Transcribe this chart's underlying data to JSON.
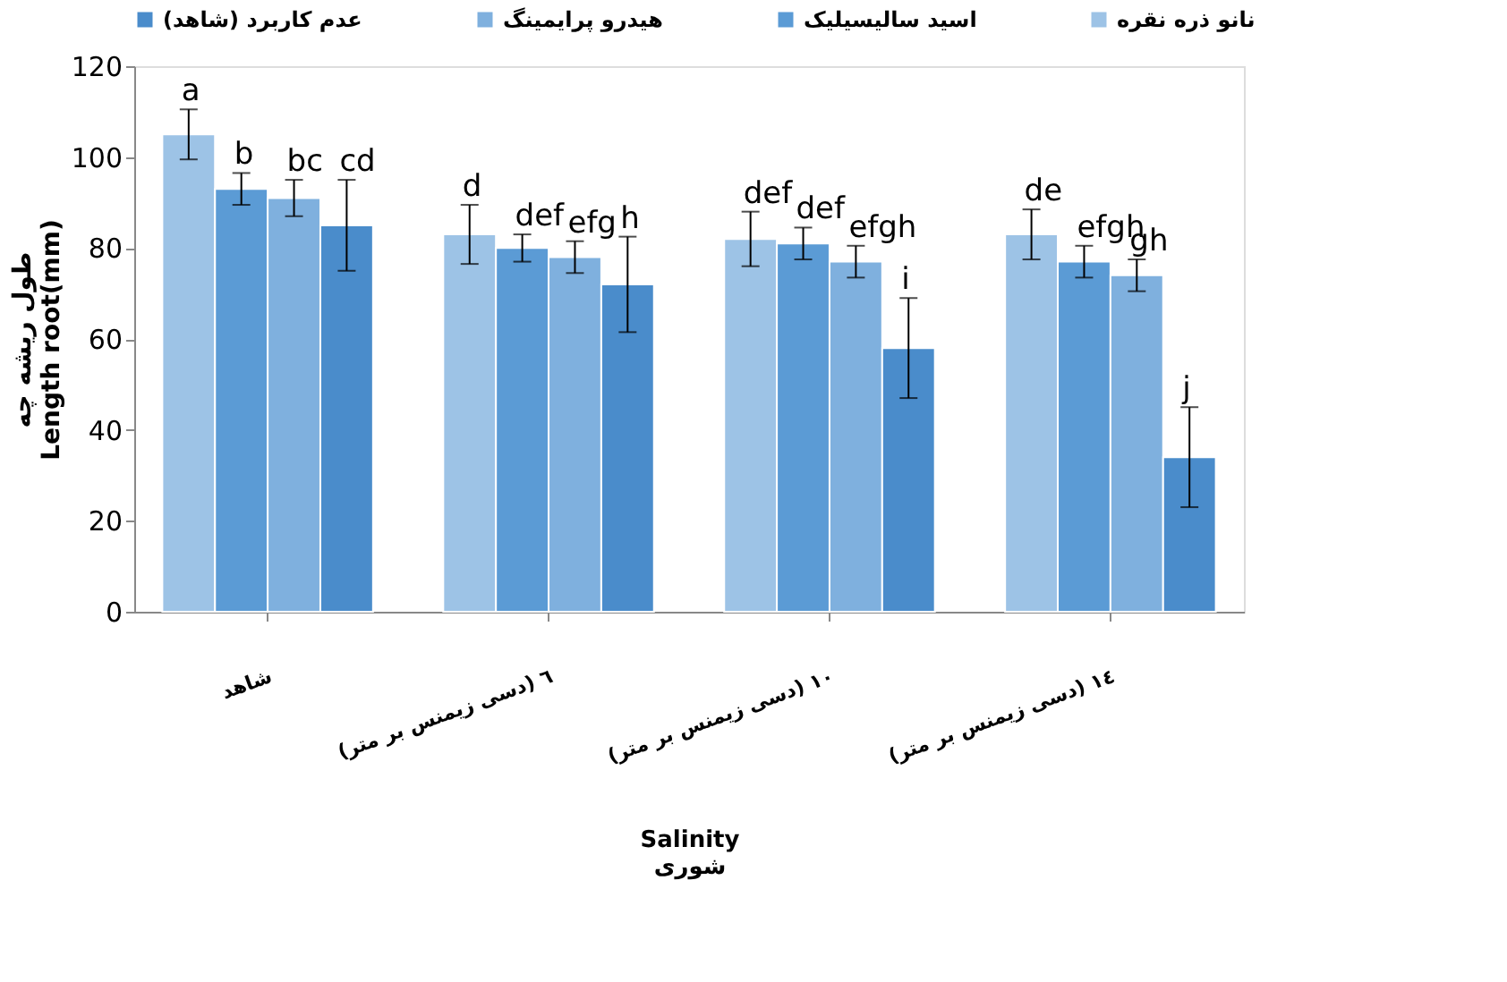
{
  "chart_data": {
    "type": "bar",
    "xlabel": "Salinity\nشوری",
    "ylabel": "طول ریشه چه\nLength root(mm)",
    "categories": [
      "شاهد",
      "٦ (دسی زیمنس بر متر)",
      "١٠ (دسی زیمنس بر متر)",
      "١٤ (دسی زیمنس بر متر)"
    ],
    "series": [
      {
        "name": "نانو ذره نقره",
        "color": "#9dc3e6",
        "values": [
          105,
          83,
          82,
          83
        ],
        "errors": [
          5.5,
          6.5,
          6,
          5.5
        ],
        "value_labels": [
          "a",
          "d",
          "def",
          "de"
        ]
      },
      {
        "name": "اسید سالیسیلیک",
        "color": "#5b9bd5",
        "values": [
          93,
          80,
          81,
          77
        ],
        "errors": [
          3.5,
          3,
          3.5,
          3.5
        ],
        "value_labels": [
          "b",
          "def",
          "def",
          "efgh"
        ]
      },
      {
        "name": "هیدرو پرایمینگ",
        "color": "#7fb0de",
        "values": [
          91,
          78,
          77,
          74
        ],
        "errors": [
          4,
          3.5,
          3.5,
          3.5
        ],
        "value_labels": [
          "bc",
          "efg",
          "efgh",
          "gh"
        ]
      },
      {
        "name": "عدم کاربرد (شاهد)",
        "color": "#4a8ccb",
        "values": [
          85,
          72,
          58,
          34
        ],
        "errors": [
          10,
          10.5,
          11,
          11
        ],
        "value_labels": [
          "cd",
          "h",
          "i",
          "j"
        ]
      }
    ],
    "ylim": [
      0,
      120
    ],
    "yticks": [
      0,
      20,
      40,
      60,
      80,
      100,
      120
    ],
    "grid": false,
    "legend": "top"
  }
}
